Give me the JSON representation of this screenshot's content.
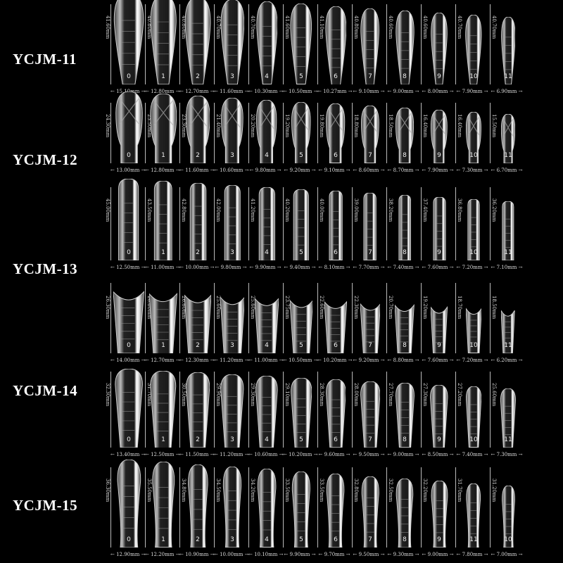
{
  "colors": {
    "background": "#000000",
    "text": "#ffffff",
    "nail_outline": "#cfcfcf"
  },
  "unit": "mm",
  "models": [
    {
      "name": "YCJM-11",
      "rows": [
        {
          "shape": "almond",
          "numbers": [
            "0",
            "1",
            "2",
            "3",
            "4",
            "5",
            "6",
            "7",
            "8",
            "9",
            "10",
            "11"
          ],
          "lengths": [
            "41.60mm",
            "40.80mm",
            "40.80mm",
            "40.70mm",
            "40.70mm",
            "41.60mm",
            "41.10mm",
            "40.80mm",
            "40.60mm",
            "40.60mm",
            "40.70mm",
            "40.70mm"
          ],
          "widths": [
            "15.10mm",
            "12.80mm",
            "12.70mm",
            "11.60mm",
            "10.30mm",
            "10.50mm",
            "10.27mm",
            "9.10mm",
            "9.00mm",
            "8.00mm",
            "7.90mm",
            "6.90mm"
          ]
        }
      ]
    },
    {
      "name": "YCJM-12",
      "rows": [
        {
          "shape": "oval",
          "numbers": [
            "0",
            "1",
            "2",
            "3",
            "4",
            "5",
            "6",
            "7",
            "8",
            "9",
            "10",
            "11"
          ],
          "lengths": [
            "24.30mm",
            "23.50mm",
            "23.30mm",
            "21.40mm",
            "20.20mm",
            "19.20mm",
            "19.80mm",
            "18.80mm",
            "18.50mm",
            "16.40mm",
            "16.40mm",
            "15.50mm"
          ],
          "widths": [
            "13.00mm",
            "12.80mm",
            "11.60mm",
            "10.60mm",
            "9.80mm",
            "9.20mm",
            "9.10mm",
            "8.60mm",
            "8.70mm",
            "7.90mm",
            "7.30mm",
            "6.70mm"
          ]
        }
      ]
    },
    {
      "name": "YCJM-13",
      "rows": [
        {
          "shape": "square",
          "numbers": [
            "0",
            "1",
            "2",
            "3",
            "4",
            "5",
            "6",
            "7",
            "8",
            "9",
            "10",
            "11"
          ],
          "lengths": [
            "45.00mm",
            "43.50mm",
            "42.80mm",
            "42.00mm",
            "41.20mm",
            "40.20mm",
            "40.00mm",
            "39.00mm",
            "38.20mm",
            "37.40mm",
            "36.80mm",
            "36.20mm"
          ],
          "widths": [
            "12.50mm",
            "11.00mm",
            "10.00mm",
            "9.80mm",
            "9.90mm",
            "9.40mm",
            "8.10mm",
            "7.70mm",
            "7.40mm",
            "7.60mm",
            "7.20mm",
            "7.10mm"
          ]
        },
        {
          "shape": "fan",
          "numbers": [
            "0",
            "1",
            "2",
            "3",
            "4",
            "5",
            "6",
            "7",
            "8",
            "9",
            "10",
            "11"
          ],
          "lengths": [
            "26.30mm",
            "26.80mm",
            "26.60mm",
            "25.60mm",
            "25.60mm",
            "23.75mm",
            "22.60mm",
            "22.30mm",
            "20.70mm",
            "19.20mm",
            "18.70mm",
            "18.50mm"
          ],
          "widths": [
            "14.00mm",
            "12.70mm",
            "12.30mm",
            "11.20mm",
            "11.00mm",
            "10.50mm",
            "10.20mm",
            "9.20mm",
            "8.80mm",
            "7.60mm",
            "7.20mm",
            "6.20mm"
          ]
        }
      ]
    },
    {
      "name": "YCJM-14",
      "rows": [
        {
          "shape": "coffin",
          "numbers": [
            "0",
            "1",
            "2",
            "3",
            "4",
            "5",
            "6",
            "7",
            "8",
            "9",
            "10",
            "11"
          ],
          "lengths": [
            "32.30mm",
            "31.70mm",
            "30.50mm",
            "29.90mm",
            "29.30mm",
            "29.10mm",
            "28.30mm",
            "28.00mm",
            "27.70mm",
            "27.30mm",
            "27.20mm",
            "25.60mm"
          ],
          "widths": [
            "13.40mm",
            "12.50mm",
            "11.50mm",
            "11.20mm",
            "10.60mm",
            "10.20mm",
            "9.60mm",
            "9.50mm",
            "9.00mm",
            "8.50mm",
            "7.40mm",
            "7.30mm"
          ]
        }
      ]
    },
    {
      "name": "YCJM-15",
      "rows": [
        {
          "shape": "tapered",
          "numbers": [
            "0",
            "1",
            "2",
            "3",
            "4",
            "5",
            "6",
            "7",
            "8",
            "9",
            "11",
            "10"
          ],
          "lengths": [
            "36.30mm",
            "35.50mm",
            "34.80mm",
            "34.50mm",
            "34.20mm",
            "33.50mm",
            "33.50mm",
            "32.80mm",
            "32.50mm",
            "32.20mm",
            "31.70mm",
            "31.20mm"
          ],
          "widths": [
            "12.90mm",
            "12.20mm",
            "10.90mm",
            "10.00mm",
            "10.10mm",
            "9.90mm",
            "9.70mm",
            "9.50mm",
            "9.30mm",
            "9.00mm",
            "7.80mm",
            "7.00mm"
          ]
        }
      ]
    }
  ]
}
